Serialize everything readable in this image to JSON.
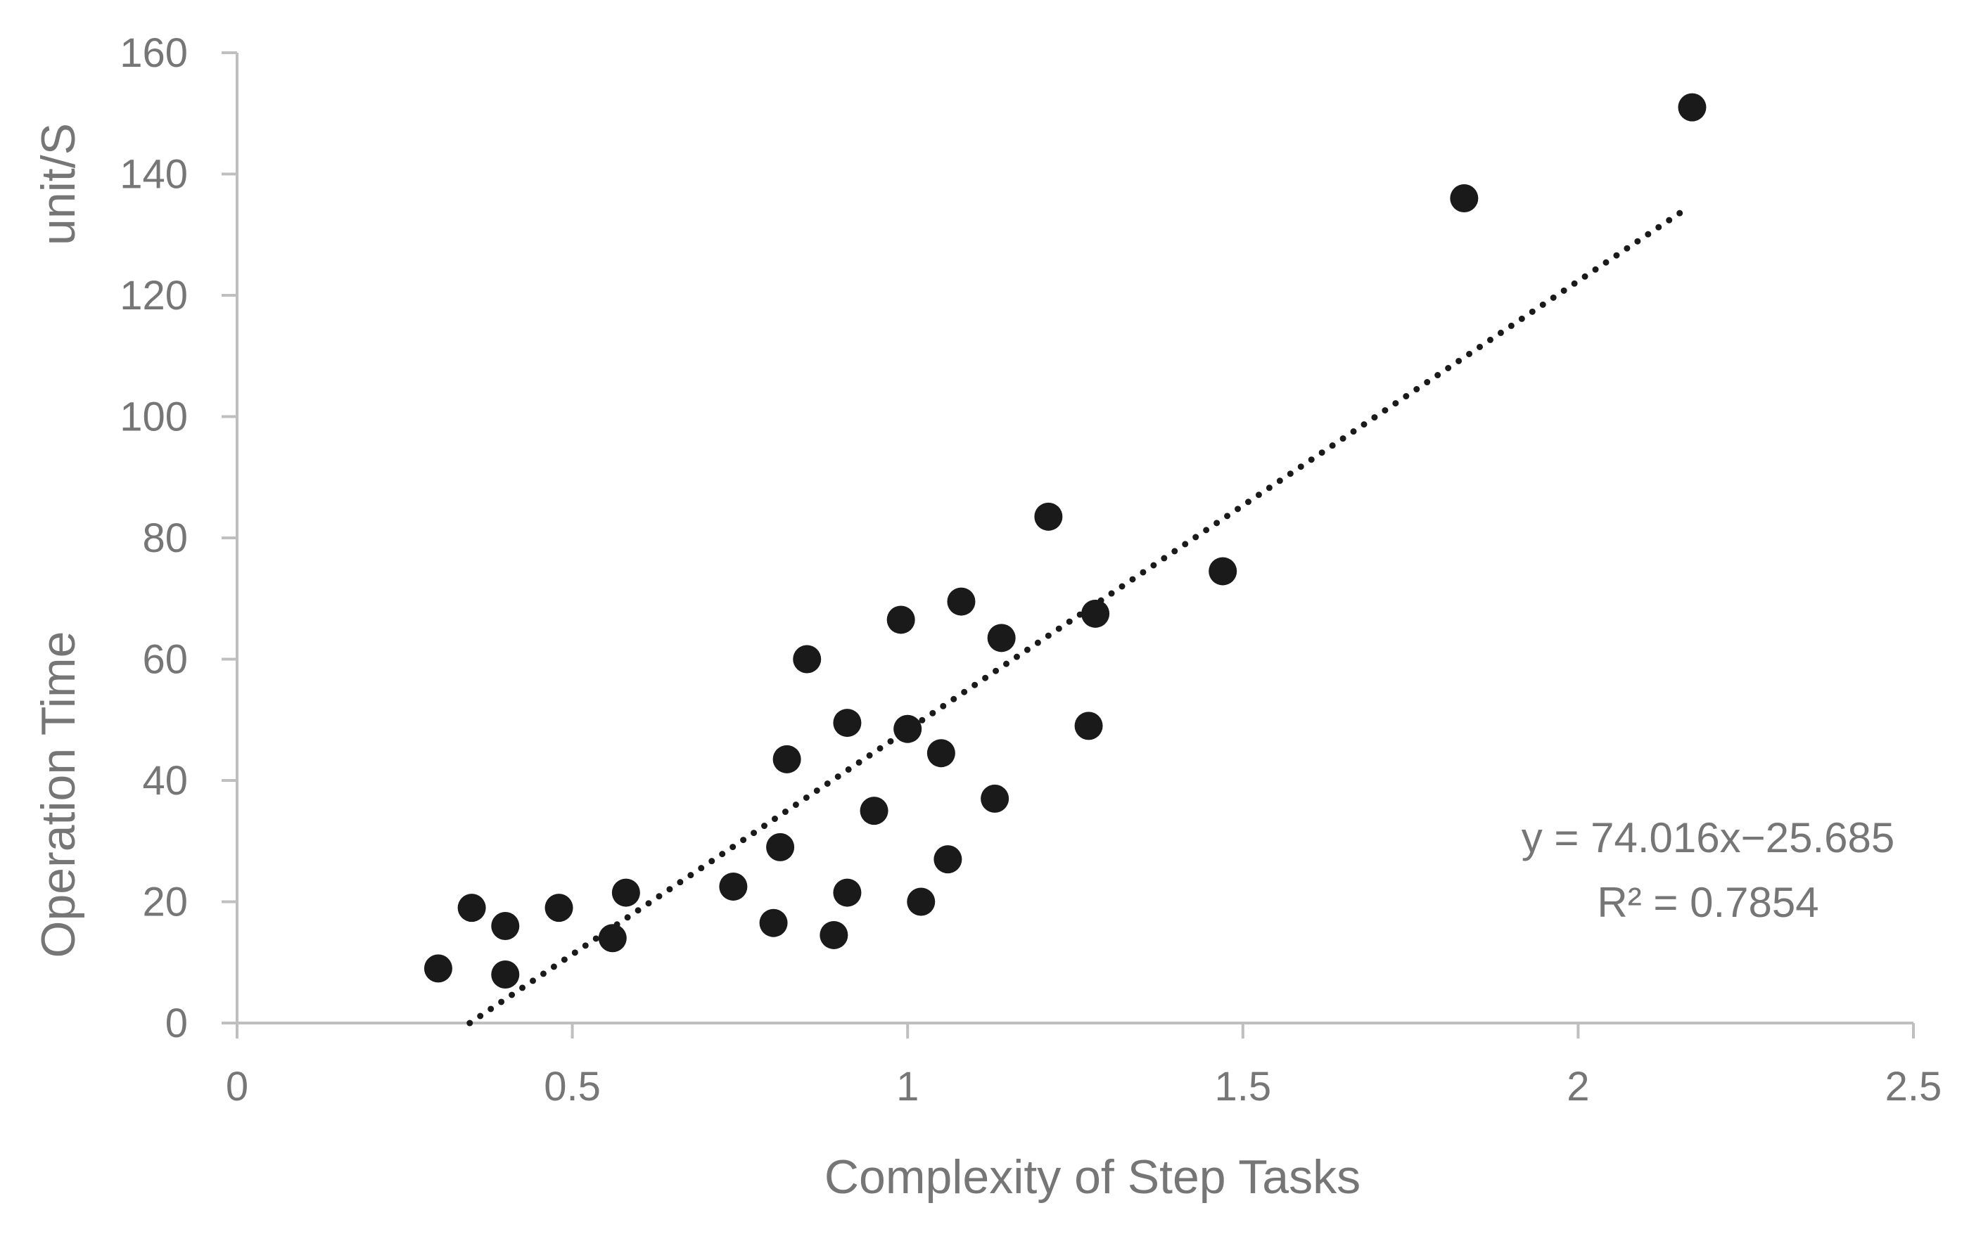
{
  "chart_data": {
    "type": "scatter",
    "xlabel": "Complexity of Step Tasks",
    "ylabel": "Operation Time",
    "yunit": "unit/S",
    "xlim": [
      0,
      2.5
    ],
    "ylim": [
      0,
      160
    ],
    "xticks": [
      0,
      0.5,
      1,
      1.5,
      2,
      2.5
    ],
    "xtick_labels": [
      "0",
      "0.5",
      "1",
      "1.5",
      "2",
      "2.5"
    ],
    "yticks": [
      0,
      20,
      40,
      60,
      80,
      100,
      120,
      140,
      160
    ],
    "ytick_labels": [
      "0",
      "20",
      "40",
      "60",
      "80",
      "100",
      "120",
      "140",
      "160"
    ],
    "grid": false,
    "marker_color": "#1a1a1a",
    "axis_color": "#bfbfbf",
    "text_color": "#767676",
    "series": [
      {
        "points": [
          [
            0.3,
            9
          ],
          [
            0.35,
            19
          ],
          [
            0.4,
            8
          ],
          [
            0.4,
            16
          ],
          [
            0.48,
            19
          ],
          [
            0.56,
            14
          ],
          [
            0.58,
            21.5
          ],
          [
            0.74,
            22.5
          ],
          [
            0.8,
            16.5
          ],
          [
            0.81,
            29
          ],
          [
            0.82,
            43.5
          ],
          [
            0.85,
            60
          ],
          [
            0.89,
            14.5
          ],
          [
            0.91,
            21.5
          ],
          [
            0.91,
            49.5
          ],
          [
            0.95,
            35
          ],
          [
            0.99,
            66.5
          ],
          [
            1.0,
            48.5
          ],
          [
            1.02,
            20
          ],
          [
            1.05,
            44.5
          ],
          [
            1.06,
            27
          ],
          [
            1.08,
            69.5
          ],
          [
            1.13,
            37
          ],
          [
            1.14,
            63.5
          ],
          [
            1.21,
            83.5
          ],
          [
            1.27,
            49
          ],
          [
            1.28,
            67.5
          ],
          [
            1.47,
            74.5
          ],
          [
            1.83,
            136
          ],
          [
            2.17,
            151
          ]
        ]
      }
    ],
    "trendline": {
      "type": "linear",
      "slope": 74.016,
      "intercept": -25.685,
      "x_range": [
        0.347,
        2.16
      ],
      "equation": "y = 74.016x−25.685",
      "r_squared": "R² = 0.7854"
    }
  }
}
